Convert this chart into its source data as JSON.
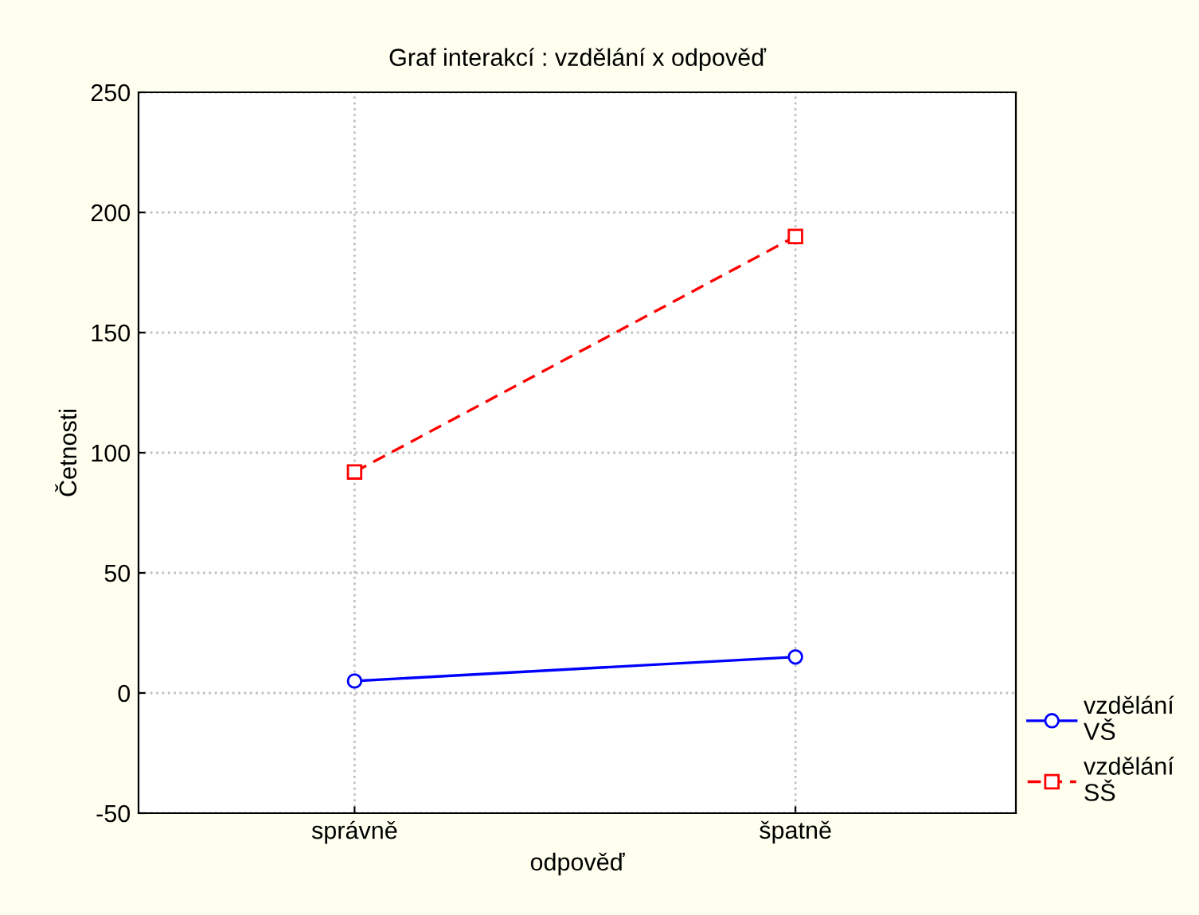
{
  "chart_data": {
    "type": "line",
    "title": "Graf interakcí : vzdělání x odpověď",
    "xlabel": "odpověď",
    "ylabel": "Četnosti",
    "categories": [
      "správně",
      "špatně"
    ],
    "series": [
      {
        "name": "vzdělání\nVŠ",
        "color": "#0000ff",
        "values": [
          5,
          15
        ],
        "marker": "circle",
        "line_style": "solid"
      },
      {
        "name": "vzdělání\nSŠ",
        "color": "#ff0000",
        "values": [
          92,
          190
        ],
        "marker": "square",
        "line_style": "dashed"
      }
    ],
    "ylim": [
      -50,
      250
    ],
    "yticks": [
      -50,
      0,
      50,
      100,
      150,
      200,
      250
    ],
    "grid": true,
    "legend": "bottom right"
  }
}
